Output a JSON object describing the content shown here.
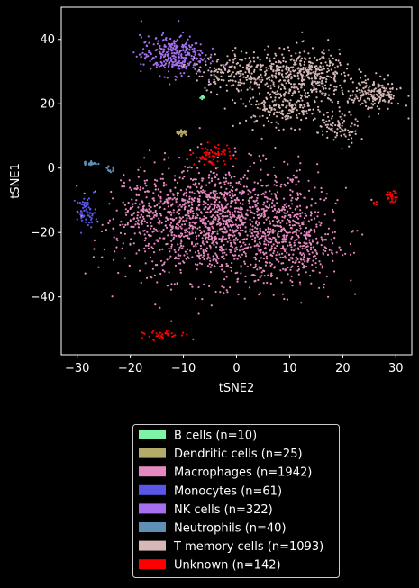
{
  "chart_data": {
    "type": "scatter",
    "title": "",
    "xlabel": "tSNE2",
    "ylabel": "tSNE1",
    "xlim": [
      -33,
      33
    ],
    "ylim": [
      -58,
      50
    ],
    "xticks": [
      -30,
      -20,
      -10,
      0,
      10,
      20,
      30
    ],
    "yticks": [
      -40,
      -20,
      0,
      20,
      40
    ],
    "background": "#000000",
    "grid": false,
    "legend_position": "below plot, centered",
    "series": [
      {
        "name": "B cells (n=10)",
        "color": "#7ef3a6",
        "clusters": [
          {
            "cx": -6.3,
            "cy": 22,
            "sx": 0.25,
            "sy": 0.4,
            "n": 10
          }
        ]
      },
      {
        "name": "Dendritic cells (n=25)",
        "color": "#b5ab68",
        "clusters": [
          {
            "cx": -10.2,
            "cy": 11,
            "sx": 0.6,
            "sy": 0.4,
            "n": 25
          }
        ]
      },
      {
        "name": "Macrophages (n=1942)",
        "color": "#e58ac0",
        "clusters": [
          {
            "cx": -3,
            "cy": -17,
            "sx": 9,
            "sy": 9,
            "n": 1500
          },
          {
            "cx": 11,
            "cy": -24,
            "sx": 4,
            "sy": 7,
            "n": 300
          },
          {
            "cx": -17,
            "cy": -13,
            "sx": 3,
            "sy": 5,
            "n": 142
          }
        ]
      },
      {
        "name": "Monocytes (n=61)",
        "color": "#5a57e8",
        "clusters": [
          {
            "cx": -28.3,
            "cy": -13.5,
            "sx": 0.9,
            "sy": 2.2,
            "n": 61
          }
        ]
      },
      {
        "name": "NK cells (n=322)",
        "color": "#a56ff0",
        "clusters": [
          {
            "cx": -12,
            "cy": 35,
            "sx": 3,
            "sy": 3,
            "n": 322
          }
        ]
      },
      {
        "name": "Neutrophils (n=40)",
        "color": "#5f8fb5",
        "clusters": [
          {
            "cx": -27.5,
            "cy": 1.5,
            "sx": 0.7,
            "sy": 0.4,
            "n": 28
          },
          {
            "cx": -24,
            "cy": -0.5,
            "sx": 0.5,
            "sy": 0.5,
            "n": 12
          }
        ]
      },
      {
        "name": "T memory cells (n=1093)",
        "color": "#d6b9b6",
        "clusters": [
          {
            "cx": 2,
            "cy": 30,
            "sx": 5,
            "sy": 3,
            "n": 280
          },
          {
            "cx": 14,
            "cy": 29,
            "sx": 4,
            "sy": 4,
            "n": 330
          },
          {
            "cx": 9,
            "cy": 19,
            "sx": 4,
            "sy": 3,
            "n": 220
          },
          {
            "cx": 26,
            "cy": 23,
            "sx": 2.5,
            "sy": 2.5,
            "n": 183
          },
          {
            "cx": 19,
            "cy": 12,
            "sx": 2,
            "sy": 2.5,
            "n": 80
          }
        ]
      },
      {
        "name": "Unknown (n=142)",
        "color": "#ff0000",
        "clusters": [
          {
            "cx": -4.5,
            "cy": 4,
            "sx": 1.8,
            "sy": 1.6,
            "n": 70
          },
          {
            "cx": -14,
            "cy": -52,
            "sx": 1.8,
            "sy": 0.7,
            "n": 35
          },
          {
            "cx": 29.2,
            "cy": -8.8,
            "sx": 0.6,
            "sy": 0.8,
            "n": 30
          },
          {
            "cx": 26,
            "cy": -11,
            "sx": 0.4,
            "sy": 0.3,
            "n": 7
          }
        ]
      }
    ]
  }
}
